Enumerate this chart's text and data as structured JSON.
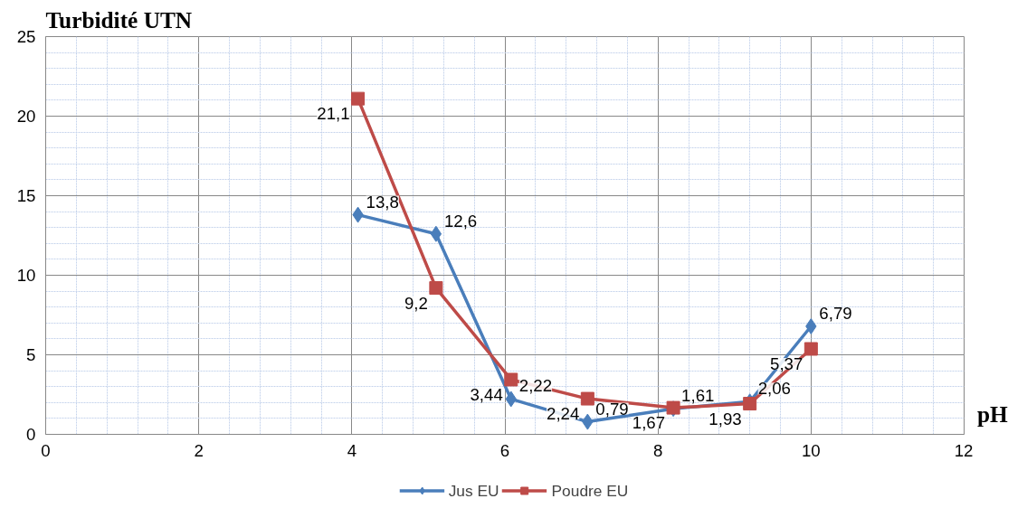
{
  "chart_data": {
    "type": "line",
    "ylabel": "Turbidité UTN",
    "xlabel": "pH",
    "x": [
      4.08,
      5.1,
      6.08,
      7.08,
      8.2,
      9.2,
      10.0
    ],
    "series": [
      {
        "name": "Jus EU",
        "color": "#4a7ebb",
        "marker": "diamond",
        "values": [
          13.8,
          12.6,
          2.22,
          0.79,
          1.61,
          2.06,
          6.79
        ],
        "value_labels": [
          "13,8",
          "12,6",
          "2,22",
          "0,79",
          "1,61",
          "2,06",
          "6,79"
        ]
      },
      {
        "name": "Poudre EU",
        "color": "#be4b48",
        "marker": "square",
        "values": [
          21.1,
          9.2,
          3.44,
          2.24,
          1.67,
          1.93,
          5.37
        ],
        "value_labels": [
          "21,1",
          "9,2",
          "3,44",
          "2,24",
          "1,67",
          "1,93",
          "5,37"
        ]
      }
    ],
    "xlim": [
      0,
      12
    ],
    "xticks": [
      0,
      2,
      4,
      6,
      8,
      10,
      12
    ],
    "ylim": [
      0,
      25
    ],
    "yticks": [
      0,
      5,
      10,
      15,
      20,
      25
    ],
    "grid": true,
    "legend": "bottom"
  }
}
